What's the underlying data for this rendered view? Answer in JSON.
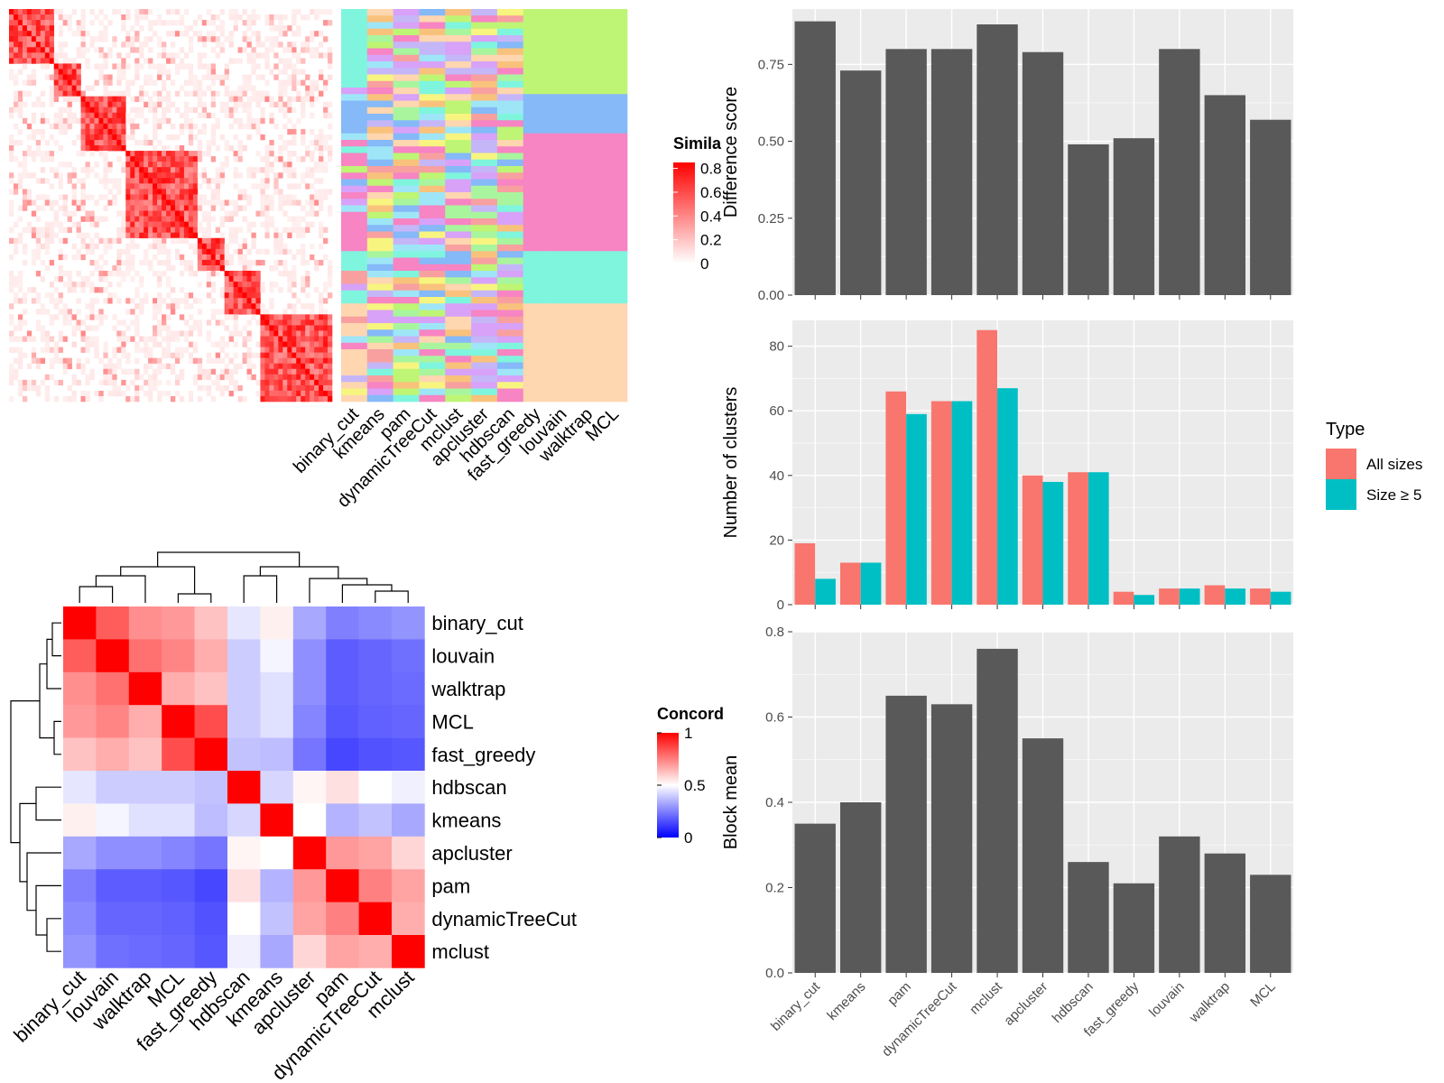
{
  "methods": [
    "binary_cut",
    "kmeans",
    "pam",
    "dynamicTreeCut",
    "mclust",
    "apcluster",
    "hdbscan",
    "fast_greedy",
    "louvain",
    "walktrap",
    "MCL"
  ],
  "colors": {
    "bar": "#595959",
    "panel_bg": "#ebebeb",
    "grid": "#ffffff",
    "all_sizes": "#f8766d",
    "size5": "#00bfc4",
    "sim_high": "#ff0000",
    "sim_low": "#ffffff",
    "conc_high": "#ff0000",
    "conc_mid": "#ffffff",
    "conc_low": "#0000ff"
  },
  "similarity_legend": {
    "title": "Simila",
    "ticks": [
      "0.8",
      "0.6",
      "0.4",
      "0.2",
      "0"
    ],
    "tick_values": [
      0.8,
      0.6,
      0.4,
      0.2,
      0
    ]
  },
  "concordance_legend": {
    "title": "Concord",
    "ticks": [
      "1",
      "0.5",
      "0"
    ],
    "tick_values": [
      1,
      0.5,
      0
    ]
  },
  "concordance_order": [
    "binary_cut",
    "louvain",
    "walktrap",
    "MCL",
    "fast_greedy",
    "hdbscan",
    "kmeans",
    "apcluster",
    "pam",
    "dynamicTreeCut",
    "mclust"
  ],
  "top_columns": [
    "binary_cut",
    "kmeans",
    "pam",
    "dynamicTreeCut",
    "mclust",
    "apcluster",
    "hdbscan",
    "fast_greedy",
    "louvain",
    "walktrap",
    "MCL"
  ],
  "chart_data": [
    {
      "type": "bar",
      "ylabel": "Difference score",
      "ylim": [
        0,
        0.93
      ],
      "yticks": [
        "0.00",
        "0.25",
        "0.50",
        "0.75"
      ],
      "ytick_values": [
        0,
        0.25,
        0.5,
        0.75
      ],
      "grid": true,
      "categories": [
        "binary_cut",
        "kmeans",
        "pam",
        "dynamicTreeCut",
        "mclust",
        "apcluster",
        "hdbscan",
        "fast_greedy",
        "louvain",
        "walktrap",
        "MCL"
      ],
      "values": [
        0.89,
        0.73,
        0.8,
        0.8,
        0.88,
        0.79,
        0.49,
        0.51,
        0.8,
        0.65,
        0.57
      ]
    },
    {
      "type": "bar",
      "ylabel": "Number of clusters",
      "ylim": [
        0,
        88
      ],
      "yticks": [
        "0",
        "20",
        "40",
        "60",
        "80"
      ],
      "ytick_values": [
        0,
        20,
        40,
        60,
        80
      ],
      "grid": true,
      "categories": [
        "binary_cut",
        "kmeans",
        "pam",
        "dynamicTreeCut",
        "mclust",
        "apcluster",
        "hdbscan",
        "fast_greedy",
        "louvain",
        "walktrap",
        "MCL"
      ],
      "legend": {
        "title": "Type",
        "position": "right",
        "labels": [
          "All sizes",
          "Size ≥ 5"
        ]
      },
      "series": [
        {
          "name": "All sizes",
          "values": [
            19,
            13,
            66,
            63,
            85,
            40,
            41,
            4,
            5,
            6,
            5
          ]
        },
        {
          "name": "Size ≥ 5",
          "values": [
            8,
            13,
            59,
            63,
            67,
            38,
            41,
            3,
            5,
            5,
            4
          ]
        }
      ]
    },
    {
      "type": "bar",
      "ylabel": "Block mean",
      "ylim": [
        0,
        0.8
      ],
      "yticks": [
        "0.0",
        "0.2",
        "0.4",
        "0.6",
        "0.8"
      ],
      "ytick_values": [
        0,
        0.2,
        0.4,
        0.6,
        0.8
      ],
      "grid": true,
      "categories": [
        "binary_cut",
        "kmeans",
        "pam",
        "dynamicTreeCut",
        "mclust",
        "apcluster",
        "hdbscan",
        "fast_greedy",
        "louvain",
        "walktrap",
        "MCL"
      ],
      "values": [
        0.35,
        0.4,
        0.65,
        0.63,
        0.76,
        0.55,
        0.26,
        0.21,
        0.32,
        0.28,
        0.23
      ]
    },
    {
      "type": "heatmap",
      "legend_title": "Concord",
      "rows": [
        "binary_cut",
        "louvain",
        "walktrap",
        "MCL",
        "fast_greedy",
        "hdbscan",
        "kmeans",
        "apcluster",
        "pam",
        "dynamicTreeCut",
        "mclust"
      ],
      "cols": [
        "binary_cut",
        "louvain",
        "walktrap",
        "MCL",
        "fast_greedy",
        "hdbscan",
        "kmeans",
        "apcluster",
        "pam",
        "dynamicTreeCut",
        "mclust"
      ],
      "values": [
        [
          1.0,
          0.82,
          0.72,
          0.7,
          0.62,
          0.45,
          0.53,
          0.33,
          0.25,
          0.27,
          0.29
        ],
        [
          0.82,
          1.0,
          0.78,
          0.74,
          0.66,
          0.4,
          0.48,
          0.28,
          0.18,
          0.2,
          0.22
        ],
        [
          0.72,
          0.78,
          1.0,
          0.66,
          0.62,
          0.4,
          0.44,
          0.28,
          0.18,
          0.2,
          0.21
        ],
        [
          0.7,
          0.74,
          0.66,
          1.0,
          0.85,
          0.4,
          0.44,
          0.26,
          0.17,
          0.19,
          0.2
        ],
        [
          0.62,
          0.66,
          0.62,
          0.85,
          1.0,
          0.38,
          0.37,
          0.23,
          0.14,
          0.16,
          0.17
        ],
        [
          0.45,
          0.4,
          0.4,
          0.4,
          0.38,
          1.0,
          0.42,
          0.52,
          0.56,
          0.5,
          0.47
        ],
        [
          0.53,
          0.48,
          0.44,
          0.44,
          0.37,
          0.42,
          1.0,
          0.5,
          0.35,
          0.38,
          0.33
        ],
        [
          0.33,
          0.28,
          0.28,
          0.26,
          0.23,
          0.52,
          0.5,
          1.0,
          0.7,
          0.68,
          0.58
        ],
        [
          0.25,
          0.18,
          0.18,
          0.17,
          0.14,
          0.56,
          0.35,
          0.7,
          1.0,
          0.75,
          0.68
        ],
        [
          0.27,
          0.2,
          0.2,
          0.19,
          0.16,
          0.5,
          0.38,
          0.68,
          0.75,
          1.0,
          0.66
        ],
        [
          0.29,
          0.22,
          0.21,
          0.2,
          0.17,
          0.47,
          0.33,
          0.58,
          0.68,
          0.66,
          1.0
        ]
      ]
    }
  ]
}
